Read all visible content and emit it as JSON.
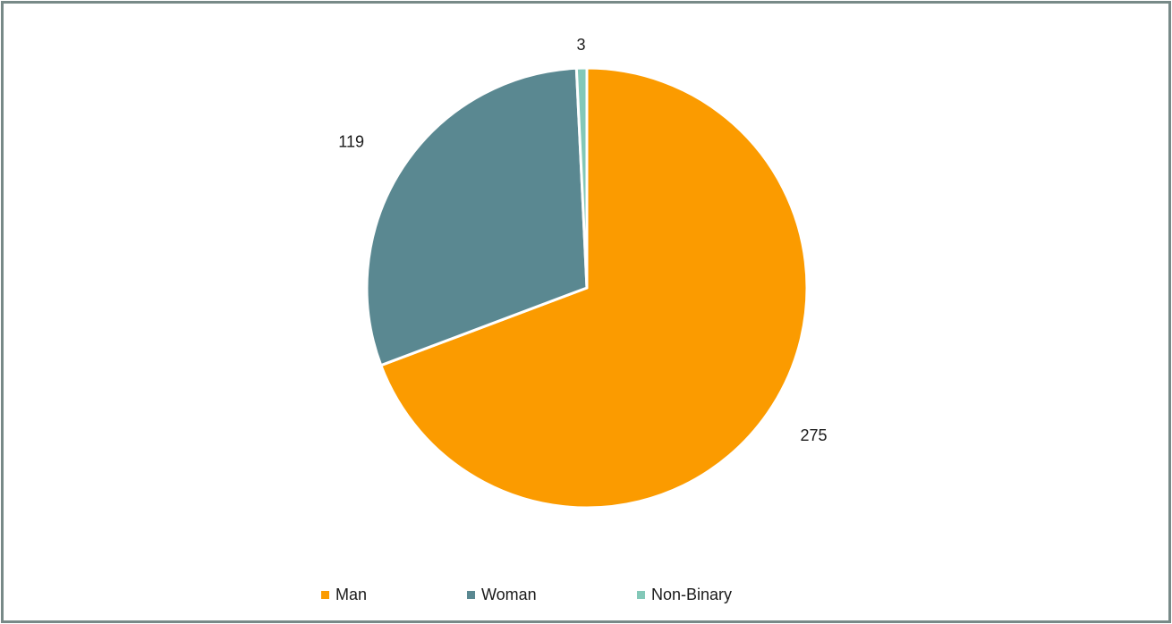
{
  "chart_data": {
    "type": "pie",
    "categories": [
      "Man",
      "Woman",
      "Non-Binary"
    ],
    "values": [
      275,
      119,
      3
    ],
    "colors": [
      "#fb9b00",
      "#5a8891",
      "#83c8b8"
    ],
    "data_labels": [
      "275",
      "119",
      "3"
    ],
    "legend_position": "bottom",
    "start_angle": "12 o'clock",
    "direction": "clockwise"
  },
  "legend": {
    "items": [
      {
        "label": "Man",
        "color": "#fb9b00"
      },
      {
        "label": "Woman",
        "color": "#5a8891"
      },
      {
        "label": "Non-Binary",
        "color": "#83c8b8"
      }
    ]
  }
}
